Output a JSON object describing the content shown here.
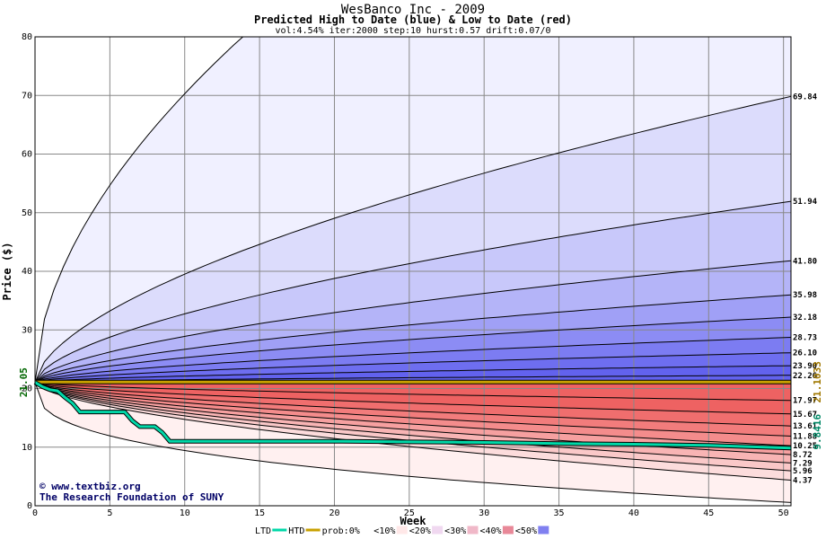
{
  "chart_data": {
    "type": "area",
    "title": "WesBanco Inc - 2009",
    "subtitle": "Predicted High to Date (blue) &  Low to Date (red)",
    "params": "vol:4.54% iter:2000 step:10 hurst:0.57 drift:0.07/0",
    "xlabel": "Week",
    "ylabel": "Price ($)",
    "xlim": [
      0,
      50.5
    ],
    "ylim": [
      0,
      80
    ],
    "x_ticks": [
      0,
      5,
      10,
      15,
      20,
      25,
      30,
      35,
      40,
      45,
      50
    ],
    "y_ticks": [
      0,
      10,
      20,
      30,
      40,
      50,
      60,
      70,
      80
    ],
    "grid": true,
    "start_price": 21.05,
    "start_price_label": "21.05",
    "high_curves": [
      {
        "end": 69.84,
        "label": "69.84"
      },
      {
        "end": 51.94,
        "label": "51.94"
      },
      {
        "end": 41.8,
        "label": "41.80"
      },
      {
        "end": 35.98,
        "label": "35.98"
      },
      {
        "end": 32.18,
        "label": "32.18"
      },
      {
        "end": 28.73,
        "label": "28.73"
      },
      {
        "end": 26.1,
        "label": "26.10"
      },
      {
        "end": 23.9,
        "label": "23.90"
      },
      {
        "end": 22.26,
        "label": "22.26"
      }
    ],
    "low_curves": [
      {
        "end": 17.97,
        "label": "17.97"
      },
      {
        "end": 15.67,
        "label": "15.67"
      },
      {
        "end": 13.61,
        "label": "13.61"
      },
      {
        "end": 11.88,
        "label": "11.88"
      },
      {
        "end": 10.25,
        "label": "10.25"
      },
      {
        "end": 8.72,
        "label": "8.72"
      },
      {
        "end": 7.29,
        "label": "7.29"
      },
      {
        "end": 5.96,
        "label": "5.96"
      },
      {
        "end": 4.37,
        "label": "4.37"
      }
    ],
    "htd_value": 21.1033,
    "htd_label": "21.1033",
    "ltd_value": 9.8416,
    "ltd_label": "9.8416",
    "ltd_series": {
      "x": [
        0,
        0.5,
        1,
        1.5,
        2,
        2.5,
        3,
        4,
        5,
        6,
        6.5,
        7,
        8,
        8.5,
        9,
        10,
        15,
        20,
        25,
        30,
        35,
        40,
        45,
        50.5
      ],
      "y": [
        21.05,
        20.3,
        19.8,
        19.6,
        18.5,
        17.5,
        16,
        16,
        16,
        16,
        14.5,
        13.5,
        13.5,
        12.5,
        11,
        11,
        11,
        11,
        10.9,
        10.8,
        10.6,
        10.5,
        10.3,
        9.84
      ]
    },
    "htd_series": {
      "x": [
        0,
        50.5
      ],
      "y": [
        21.1033,
        21.1033
      ]
    },
    "legend": {
      "ltd": "LTD",
      "htd": "HTD",
      "prob": "prob:0%",
      "bands": [
        "<10%",
        "<20%",
        "<30%",
        "<40%",
        "<50%"
      ]
    },
    "colors": {
      "high_fill": [
        "#f0f0ff",
        "#dcdcfc",
        "#c8c8fa",
        "#b4b4f8",
        "#a0a0f6",
        "#8c8cf4",
        "#7c7cf2",
        "#6e6ef0",
        "#6262ee"
      ],
      "low_fill": [
        "#fff0f0",
        "#fcdcdc",
        "#fac8c8",
        "#f8b4b4",
        "#f6a0a0",
        "#f48c8c",
        "#f27c7c",
        "#f06e6e",
        "#ee6262"
      ],
      "ltd_line": "#00d8a8",
      "htd_line": "#c8a000",
      "legend_swatches": [
        "#ffffff",
        "#ffe8e8",
        "#f0d8f0",
        "#f0b8c8",
        "#e88898",
        "#8080f0"
      ]
    }
  },
  "credits": {
    "line1": "© www.textbiz.org",
    "line2": "The Research Foundation of SUNY"
  }
}
